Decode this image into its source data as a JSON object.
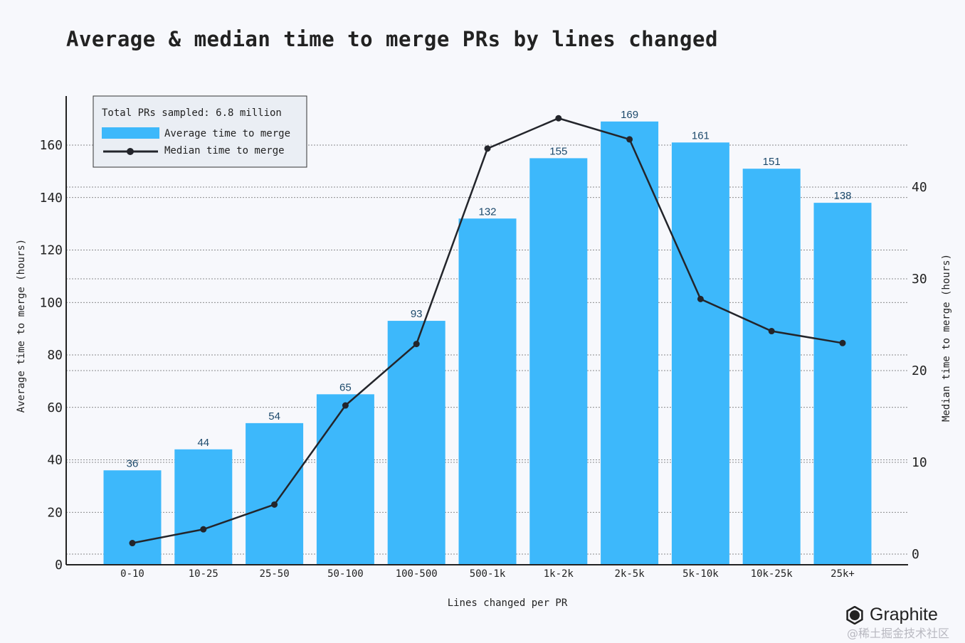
{
  "chart_data": {
    "type": "bar",
    "title": "Average & median time to merge PRs by lines changed",
    "xlabel": "Lines changed per PR",
    "ylabel": "Average time to merge (hours)",
    "y2label": "Median time to merge (hours)",
    "categories": [
      "0-10",
      "10-25",
      "25-50",
      "50-100",
      "100-500",
      "500-1k",
      "1k-2k",
      "2k-5k",
      "5k-10k",
      "10k-25k",
      "25k+"
    ],
    "series": [
      {
        "name": "Average time to merge",
        "type": "bar",
        "axis": "left",
        "color": "#3db8fb",
        "values": [
          36,
          44,
          54,
          65,
          93,
          132,
          155,
          169,
          161,
          151,
          138
        ]
      },
      {
        "name": "Median time to merge",
        "type": "line",
        "axis": "right",
        "color": "#23252b",
        "values": [
          1.2,
          2.7,
          5.4,
          16.2,
          22.9,
          44.2,
          47.5,
          45.2,
          27.8,
          24.3,
          23.0
        ]
      }
    ],
    "ylim": [
      0,
      160
    ],
    "yticks": [
      0,
      20,
      40,
      60,
      80,
      100,
      120,
      140,
      160
    ],
    "y2lim": [
      0,
      40
    ],
    "y2ticks": [
      0,
      10,
      20,
      30,
      40
    ],
    "grid": true,
    "legend_position": "top-left",
    "annotation": "Total PRs sampled: 6.8 million"
  },
  "brand": "Graphite",
  "watermark": "@稀土掘金技术社区"
}
